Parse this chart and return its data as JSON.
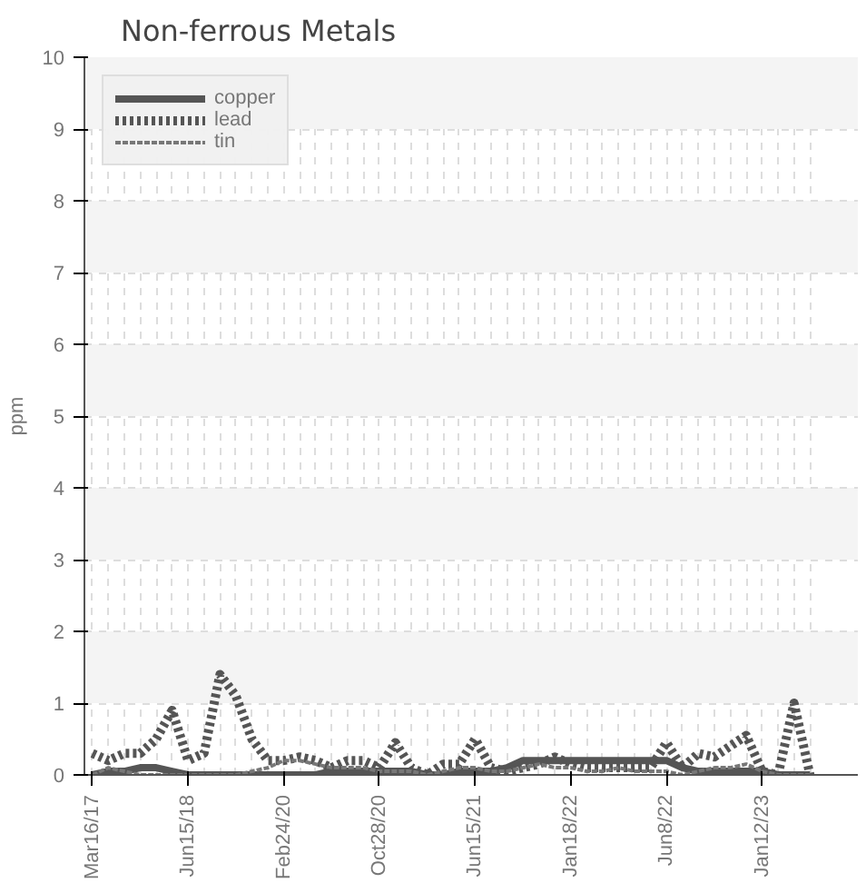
{
  "chart_data": {
    "type": "line",
    "title": "Non-ferrous Metals",
    "ylabel": "ppm",
    "categories": [
      "Mar16/17",
      null,
      null,
      null,
      null,
      null,
      "Jun15/18",
      null,
      null,
      null,
      null,
      null,
      "Feb24/20",
      null,
      null,
      null,
      null,
      null,
      "Oct28/20",
      null,
      null,
      null,
      null,
      null,
      "Jun15/21",
      null,
      null,
      null,
      null,
      null,
      "Jan18/22",
      null,
      null,
      null,
      null,
      null,
      "Jun8/22",
      null,
      null,
      null,
      null,
      null,
      "Jan12/23",
      null,
      null,
      null
    ],
    "series": [
      {
        "name": "copper",
        "color": "#555555",
        "line_style": "solid",
        "values": [
          0.0,
          0.05,
          0.05,
          0.1,
          0.1,
          0.05,
          0.0,
          0.0,
          0.0,
          0.0,
          0.0,
          0.0,
          0.0,
          0.0,
          0.0,
          0.05,
          0.05,
          0.05,
          0.05,
          0.05,
          0.05,
          0.0,
          0.0,
          0.05,
          0.05,
          0.05,
          0.1,
          0.2,
          0.2,
          0.2,
          0.2,
          0.2,
          0.2,
          0.2,
          0.2,
          0.2,
          0.2,
          0.1,
          0.05,
          0.05,
          0.05,
          0.05,
          0.05,
          0.0,
          0.0,
          0.0
        ]
      },
      {
        "name": "lead",
        "color": "#555555",
        "line_style": "dotted",
        "values": [
          0.3,
          0.2,
          0.3,
          0.3,
          0.5,
          0.9,
          0.2,
          0.3,
          1.4,
          1.1,
          0.5,
          0.2,
          0.2,
          0.25,
          0.2,
          0.1,
          0.2,
          0.2,
          0.1,
          0.45,
          0.1,
          0.0,
          0.15,
          0.15,
          0.5,
          0.1,
          0.05,
          0.1,
          0.15,
          0.25,
          0.15,
          0.1,
          0.1,
          0.1,
          0.1,
          0.1,
          0.45,
          0.1,
          0.3,
          0.25,
          0.4,
          0.55,
          0.05,
          0.0,
          1.0,
          0.0
        ]
      },
      {
        "name": "tin",
        "color": "#777777",
        "line_style": "dashed",
        "values": [
          0.0,
          0.1,
          0.05,
          0.0,
          0.0,
          0.0,
          0.0,
          0.0,
          0.0,
          0.0,
          0.05,
          0.1,
          0.2,
          0.2,
          0.15,
          0.1,
          0.1,
          0.1,
          0.05,
          0.05,
          0.05,
          0.0,
          0.05,
          0.1,
          0.1,
          0.05,
          0.05,
          0.1,
          0.15,
          0.1,
          0.1,
          0.05,
          0.05,
          0.1,
          0.05,
          0.05,
          0.05,
          0.0,
          0.05,
          0.1,
          0.1,
          0.15,
          0.05,
          0.0,
          0.0,
          0.0
        ]
      }
    ],
    "ylim": [
      0,
      10
    ],
    "yticks": [
      0,
      1,
      2,
      3,
      4,
      5,
      6,
      7,
      8,
      9,
      10
    ],
    "grid": true,
    "legend": "top left",
    "marker": "none"
  }
}
